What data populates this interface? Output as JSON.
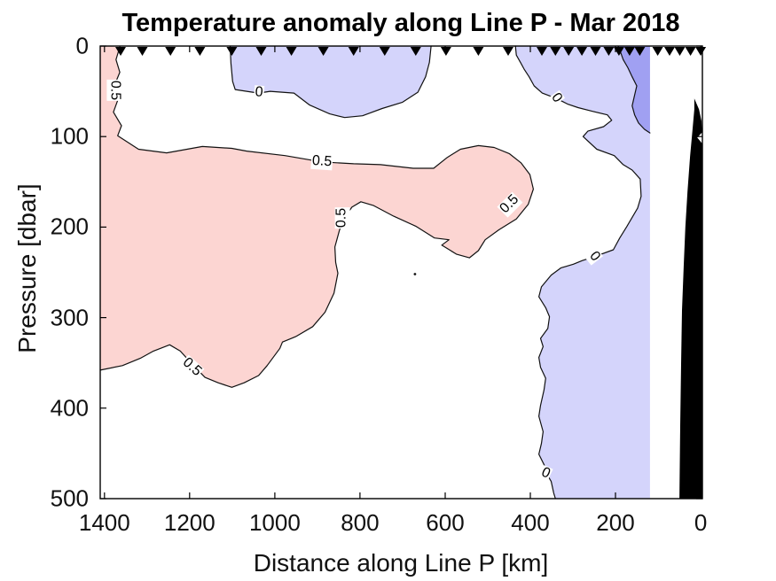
{
  "chart_data": {
    "type": "filled-contour-section",
    "title": "Temperature anomaly along Line P - Mar 2018",
    "xlabel": "Distance along Line P [km]",
    "ylabel": "Pressure [dbar]",
    "x_ticks": [
      1400,
      1200,
      1000,
      800,
      600,
      400,
      200,
      0
    ],
    "y_ticks": [
      0,
      100,
      200,
      300,
      400,
      500
    ],
    "xlim": [
      1410,
      -4
    ],
    "ylim": [
      0,
      500
    ],
    "x_axis_reversed": true,
    "y_axis_depth_down": true,
    "grid": false,
    "contour_levels": [
      -0.5,
      0,
      0.5
    ],
    "colors": {
      "pink": "#fcd5d2",
      "light_blue": "#d4d4fb",
      "dark_blue": "#a0a0f2",
      "black": "#000000",
      "white": "#ffffff",
      "line": "#111111",
      "axis": "#000000"
    },
    "station_markers_km": [
      1362,
      1311,
      1245,
      1176,
      1101,
      1032,
      961,
      886,
      815,
      742,
      669,
      598,
      522,
      452,
      373,
      341,
      310,
      279,
      247,
      216,
      192,
      167,
      143,
      101,
      73,
      49,
      24,
      0
    ],
    "regions": [
      {
        "name": "negative-anomaly-right",
        "level": "-0.5 to 0",
        "color": "light_blue",
        "stroke": true,
        "points": [
          [
            435,
            0
          ],
          [
            433,
            10
          ],
          [
            422,
            19
          ],
          [
            414,
            26
          ],
          [
            403,
            34
          ],
          [
            391,
            44
          ],
          [
            372,
            52
          ],
          [
            338,
            58
          ],
          [
            313,
            64
          ],
          [
            288,
            68
          ],
          [
            255,
            72
          ],
          [
            219,
            76
          ],
          [
            209,
            82
          ],
          [
            228,
            89
          ],
          [
            265,
            94
          ],
          [
            276,
            100
          ],
          [
            244,
            114
          ],
          [
            203,
            121
          ],
          [
            182,
            131
          ],
          [
            161,
            137
          ],
          [
            142,
            147
          ],
          [
            140,
            166
          ],
          [
            148,
            179
          ],
          [
            173,
            199
          ],
          [
            190,
            212
          ],
          [
            205,
            225
          ],
          [
            251,
            233
          ],
          [
            278,
            237
          ],
          [
            299,
            241
          ],
          [
            328,
            245
          ],
          [
            351,
            253
          ],
          [
            374,
            266
          ],
          [
            380,
            277
          ],
          [
            364,
            289
          ],
          [
            355,
            299
          ],
          [
            359,
            312
          ],
          [
            376,
            323
          ],
          [
            370,
            332
          ],
          [
            380,
            344
          ],
          [
            376,
            355
          ],
          [
            364,
            367
          ],
          [
            368,
            380
          ],
          [
            376,
            397
          ],
          [
            380,
            409
          ],
          [
            370,
            426
          ],
          [
            374,
            439
          ],
          [
            380,
            451
          ],
          [
            364,
            466
          ],
          [
            361,
            473
          ],
          [
            351,
            481
          ],
          [
            345,
            494
          ],
          [
            341,
            500
          ]
        ],
        "post": [
          [
            119,
            500
          ],
          [
            119,
            0
          ]
        ]
      },
      {
        "name": "strong-negative-anomaly",
        "level": "below -0.5",
        "color": "dark_blue",
        "stroke": true,
        "points": [
          [
            194,
            0
          ],
          [
            188,
            7
          ],
          [
            182,
            15
          ],
          [
            171,
            24
          ],
          [
            161,
            34
          ],
          [
            150,
            44
          ],
          [
            155,
            54
          ],
          [
            161,
            66
          ],
          [
            155,
            76
          ],
          [
            146,
            85
          ],
          [
            132,
            92
          ],
          [
            119,
            96
          ]
        ],
        "post": [
          [
            119,
            0
          ]
        ]
      },
      {
        "name": "negative-anomaly-top-middle",
        "level": "-0.5 to 0",
        "color": "light_blue",
        "stroke": true,
        "points": [
          [
            1105,
            0
          ],
          [
            1103,
            19
          ],
          [
            1099,
            39
          ],
          [
            1093,
            48
          ],
          [
            1066,
            50
          ],
          [
            1038,
            52
          ],
          [
            1011,
            50
          ],
          [
            955,
            52
          ],
          [
            919,
            65
          ],
          [
            871,
            75
          ],
          [
            836,
            79
          ],
          [
            794,
            77
          ],
          [
            748,
            69
          ],
          [
            700,
            62
          ],
          [
            664,
            51
          ],
          [
            646,
            34
          ],
          [
            637,
            18
          ],
          [
            633,
            0
          ]
        ]
      },
      {
        "name": "warm-anomaly-main",
        "level": "above 0.5",
        "color": "pink",
        "stroke": true,
        "pre": [
          [
            1410,
            0
          ]
        ],
        "points": [
          [
            1364,
            1
          ],
          [
            1373,
            15
          ],
          [
            1364,
            29
          ],
          [
            1377,
            44
          ],
          [
            1369,
            60
          ],
          [
            1379,
            73
          ],
          [
            1360,
            88
          ],
          [
            1369,
            99
          ],
          [
            1320,
            114
          ],
          [
            1254,
            118
          ],
          [
            1170,
            111
          ],
          [
            1101,
            113
          ],
          [
            1066,
            116
          ],
          [
            976,
            121
          ],
          [
            890,
            128
          ],
          [
            815,
            130
          ],
          [
            752,
            131
          ],
          [
            675,
            135
          ],
          [
            627,
            135
          ],
          [
            595,
            123
          ],
          [
            564,
            114
          ],
          [
            522,
            110
          ],
          [
            485,
            112
          ],
          [
            449,
            119
          ],
          [
            422,
            129
          ],
          [
            401,
            142
          ],
          [
            393,
            158
          ],
          [
            405,
            175
          ],
          [
            433,
            191
          ],
          [
            474,
            203
          ],
          [
            506,
            214
          ],
          [
            522,
            226
          ],
          [
            543,
            234
          ],
          [
            573,
            230
          ],
          [
            608,
            220
          ],
          [
            591,
            214
          ],
          [
            625,
            212
          ],
          [
            669,
            199
          ],
          [
            721,
            188
          ],
          [
            769,
            176
          ],
          [
            798,
            172
          ],
          [
            819,
            178
          ],
          [
            834,
            188
          ],
          [
            848,
            203
          ],
          [
            859,
            222
          ],
          [
            857,
            239
          ],
          [
            852,
            251
          ],
          [
            861,
            273
          ],
          [
            882,
            294
          ],
          [
            911,
            310
          ],
          [
            951,
            321
          ],
          [
            982,
            327
          ],
          [
            988,
            334
          ],
          [
            1018,
            353
          ],
          [
            1038,
            364
          ],
          [
            1072,
            372
          ],
          [
            1101,
            377
          ],
          [
            1133,
            372
          ],
          [
            1164,
            366
          ],
          [
            1191,
            353
          ],
          [
            1222,
            337
          ],
          [
            1247,
            330
          ],
          [
            1285,
            337
          ],
          [
            1316,
            345
          ],
          [
            1358,
            353
          ],
          [
            1410,
            358
          ]
        ]
      },
      {
        "name": "bathymetry",
        "level": "seafloor",
        "color": "black",
        "stroke": false,
        "points": [
          [
            15,
            58
          ],
          [
            4,
            70
          ],
          [
            -2,
            83
          ],
          [
            -4,
            100
          ],
          [
            -4,
            500
          ],
          [
            50,
            500
          ],
          [
            48,
            419
          ],
          [
            46,
            351
          ],
          [
            44,
            292
          ],
          [
            40,
            244
          ],
          [
            36,
            200
          ],
          [
            31,
            161
          ],
          [
            25,
            122
          ],
          [
            19,
            91
          ],
          [
            15,
            70
          ]
        ]
      },
      {
        "name": "bathymetry-notch",
        "level": "seafloor-gap",
        "color": "white",
        "stroke": false,
        "points": [
          [
            -4,
            95
          ],
          [
            8,
            101
          ],
          [
            -4,
            108
          ]
        ]
      }
    ],
    "contour_labels": [
      {
        "text": "0.5",
        "km": 1377,
        "dbar": 49,
        "rot": 90
      },
      {
        "text": "0",
        "km": 1038,
        "dbar": 52,
        "rot": 5
      },
      {
        "text": "0.5",
        "km": 890,
        "dbar": 128,
        "rot": 4
      },
      {
        "text": "0.5",
        "km": 842,
        "dbar": 190,
        "rot": -90
      },
      {
        "text": "0.5",
        "km": 447,
        "dbar": 175,
        "rot": -45
      },
      {
        "text": "0",
        "km": 339,
        "dbar": 58,
        "rot": 55
      },
      {
        "text": "0",
        "km": 251,
        "dbar": 233,
        "rot": 52
      },
      {
        "text": "0",
        "km": 364,
        "dbar": 473,
        "rot": 25
      },
      {
        "text": "0.5",
        "km": 1195,
        "dbar": 355,
        "rot": 42
      }
    ],
    "tiny_contour_dot": {
      "km": 671,
      "dbar": 252
    }
  }
}
